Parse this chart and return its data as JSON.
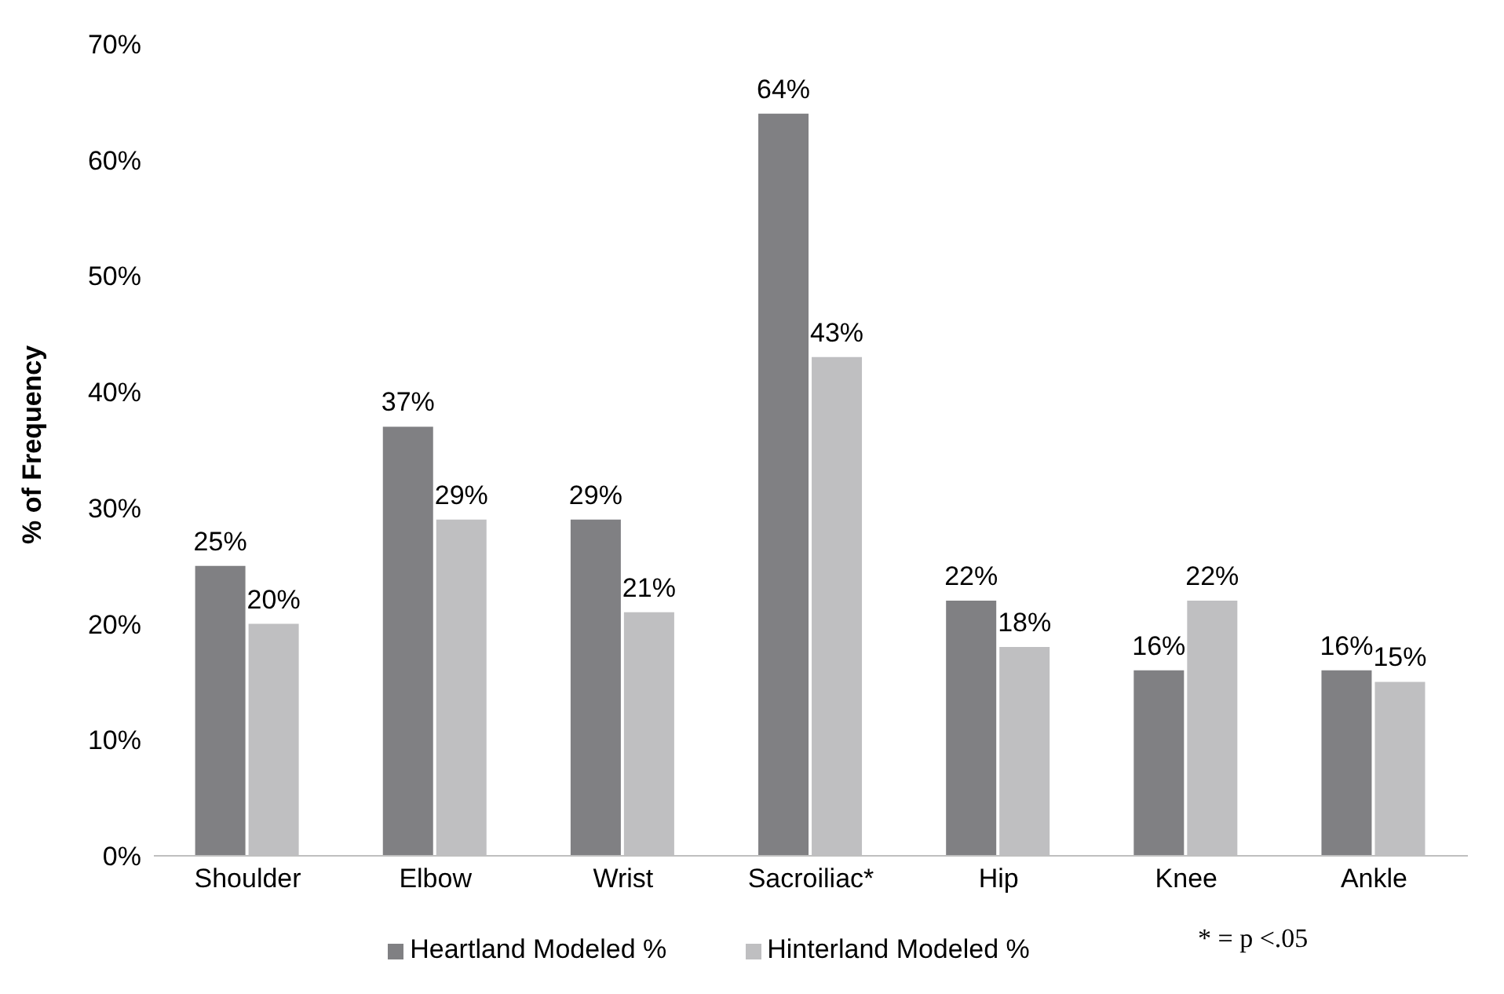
{
  "chart_data": {
    "type": "bar",
    "ylabel": "% of Frequency",
    "categories": [
      "Shoulder",
      "Elbow",
      "Wrist",
      "Sacroiliac*",
      "Hip",
      "Knee",
      "Ankle"
    ],
    "series": [
      {
        "name": "Heartland Modeled %",
        "color": "#808083",
        "values": [
          25,
          37,
          29,
          64,
          22,
          16,
          16
        ],
        "value_labels": [
          "25%",
          "37%",
          "29%",
          "64%",
          "22%",
          "16%",
          "16%"
        ]
      },
      {
        "name": "Hinterland Modeled %",
        "color": "#bfbfc1",
        "values": [
          20,
          29,
          21,
          43,
          18,
          22,
          15
        ],
        "value_labels": [
          "20%",
          "29%",
          "21%",
          "43%",
          "18%",
          "22%",
          "15%"
        ]
      }
    ],
    "ylim": [
      0,
      70
    ],
    "yticks": [
      {
        "value": 0,
        "label": "0%"
      },
      {
        "value": 10,
        "label": "10%"
      },
      {
        "value": 20,
        "label": "20%"
      },
      {
        "value": 30,
        "label": "30%"
      },
      {
        "value": 40,
        "label": "40%"
      },
      {
        "value": 50,
        "label": "50%"
      },
      {
        "value": 60,
        "label": "60%"
      },
      {
        "value": 70,
        "label": "70%"
      }
    ],
    "grid": false,
    "legend": "bottom",
    "annotations": [
      "* = p <.05"
    ]
  }
}
